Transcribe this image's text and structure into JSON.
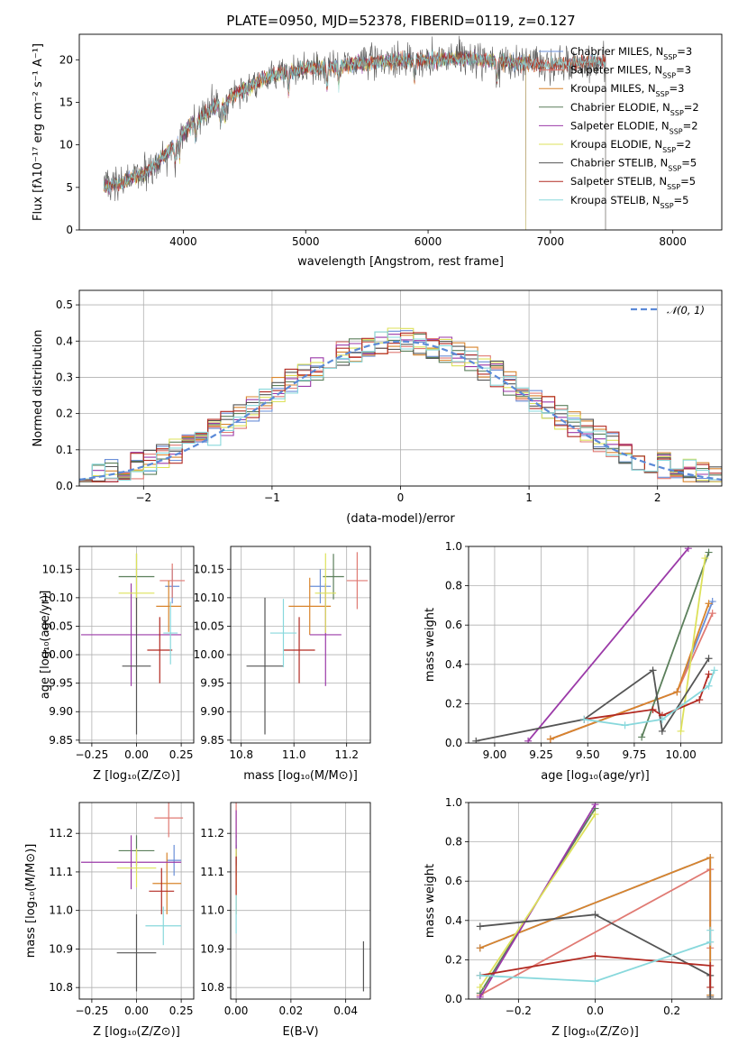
{
  "figure": {
    "title": "PLATE=0950, MJD=52378, FIBERID=0119, z=0.127"
  },
  "colors": {
    "Chabrier MILES": "#6a8fd8",
    "Salpeter MILES": "#e07a73",
    "Kroupa MILES": "#d8842c",
    "Chabrier ELODIE": "#5b7f5b",
    "Salpeter ELODIE": "#9b3aa8",
    "Kroupa ELODIE": "#dde15a",
    "Chabrier STELIB": "#555555",
    "Salpeter STELIB": "#b22a22",
    "Kroupa STELIB": "#88d8dc",
    "normal": "#5b8ad8"
  },
  "chart_data": [
    {
      "id": "spectrum",
      "type": "line",
      "xlabel": "wavelength [Angstrom, rest frame]",
      "ylabel": "Flux [fλ10⁻¹⁷ erg cm⁻² s⁻¹ A⁻¹]",
      "xlim": [
        3150,
        8400
      ],
      "ylim": [
        0,
        23
      ],
      "xticks": [
        4000,
        5000,
        6000,
        7000,
        8000
      ],
      "yticks": [
        0,
        5,
        10,
        15,
        20
      ],
      "legend_position": "top-right",
      "continuum": {
        "x": [
          3350,
          3500,
          3700,
          3900,
          4000,
          4200,
          4500,
          4700,
          5000,
          5300,
          5600,
          6000,
          6300,
          6600,
          7000,
          7400
        ],
        "y": [
          5.2,
          5.6,
          6.8,
          9.5,
          11.5,
          14.0,
          16.5,
          18.0,
          19.0,
          19.3,
          19.8,
          20.0,
          20.2,
          19.8,
          19.4,
          19.8
        ]
      },
      "series": [
        {
          "name": "Chabrier MILES, N_SSP=3",
          "x_range": [
            3350,
            7450
          ]
        },
        {
          "name": "Salpeter MILES, N_SSP=3",
          "x_range": [
            3350,
            7450
          ]
        },
        {
          "name": "Kroupa MILES, N_SSP=3",
          "x_range": [
            3350,
            7450
          ]
        },
        {
          "name": "Chabrier ELODIE, N_SSP=2",
          "x_range": [
            3350,
            6800
          ]
        },
        {
          "name": "Salpeter ELODIE, N_SSP=2",
          "x_range": [
            3350,
            6800
          ]
        },
        {
          "name": "Kroupa ELODIE, N_SSP=2",
          "x_range": [
            3350,
            6800
          ]
        },
        {
          "name": "Chabrier STELIB, N_SSP=5",
          "x_range": [
            3350,
            7450
          ]
        },
        {
          "name": "Salpeter STELIB, N_SSP=5",
          "x_range": [
            3350,
            7450
          ]
        },
        {
          "name": "Kroupa STELIB, N_SSP=5",
          "x_range": [
            3350,
            7450
          ]
        }
      ]
    },
    {
      "id": "residuals",
      "type": "line",
      "xlabel": "(data-model)/error",
      "ylabel": "Normed distribution",
      "xlim": [
        -2.5,
        2.5
      ],
      "ylim": [
        0,
        0.54
      ],
      "xticks": [
        -2,
        -1,
        0,
        1,
        2
      ],
      "yticks": [
        0.0,
        0.1,
        0.2,
        0.3,
        0.4,
        0.5
      ],
      "grid": true,
      "legend": "𝒩(0, 1)",
      "legend_position": "top-right",
      "hist_bins": [
        -2.5,
        2.5,
        0.1
      ]
    },
    {
      "id": "age_vs_Z",
      "type": "scatter",
      "xlabel": "Z [log₁₀(Z/Z⊙)]",
      "ylabel": "age  [log₁₀(age/yr)]",
      "xlim": [
        -0.32,
        0.32
      ],
      "ylim": [
        9.845,
        10.19
      ],
      "xticks": [
        -0.25,
        0.0,
        0.25
      ],
      "yticks": [
        9.85,
        9.9,
        9.95,
        10.0,
        10.05,
        10.1,
        10.15
      ],
      "grid": true,
      "points": [
        {
          "s": "Chabrier MILES",
          "x": 0.2,
          "y": 10.12,
          "xerr": 0.04,
          "yerr": 0.03
        },
        {
          "s": "Salpeter MILES",
          "x": 0.2,
          "y": 10.13,
          "xerr": 0.07,
          "yerr": 0.03
        },
        {
          "s": "Kroupa MILES",
          "x": 0.18,
          "y": 10.085,
          "xerr": 0.07,
          "yerr": 0.045
        },
        {
          "s": "Chabrier ELODIE",
          "x": 0.0,
          "y": 10.137,
          "xerr": 0.1,
          "yerr": 0.04
        },
        {
          "s": "Salpeter ELODIE",
          "x": -0.03,
          "y": 10.035,
          "xerr": 0.28,
          "yerr": 0.09
        },
        {
          "s": "Kroupa ELODIE",
          "x": 0.0,
          "y": 10.108,
          "xerr": 0.1,
          "yerr": 0.07
        },
        {
          "s": "Chabrier STELIB",
          "x": 0.0,
          "y": 9.98,
          "xerr": 0.08,
          "yerr": 0.12
        },
        {
          "s": "Salpeter STELIB",
          "x": 0.13,
          "y": 10.008,
          "xerr": 0.07,
          "yerr": 0.058
        },
        {
          "s": "Kroupa STELIB",
          "x": 0.19,
          "y": 10.038,
          "xerr": 0.04,
          "yerr": 0.055
        }
      ]
    },
    {
      "id": "age_vs_mass",
      "type": "scatter",
      "xlabel": "mass [log₁₀(M/M⊙)]",
      "ylabel": "",
      "xlim": [
        10.76,
        11.29
      ],
      "ylim": [
        9.845,
        10.19
      ],
      "xticks": [
        10.8,
        11.0,
        11.2
      ],
      "yticks": [
        9.85,
        9.9,
        9.95,
        10.0,
        10.05,
        10.1,
        10.15
      ],
      "grid": true,
      "points": [
        {
          "s": "Chabrier MILES",
          "x": 11.1,
          "y": 10.12,
          "xerr": 0.04,
          "yerr": 0.03
        },
        {
          "s": "Salpeter MILES",
          "x": 11.24,
          "y": 10.13,
          "xerr": 0.04,
          "yerr": 0.05
        },
        {
          "s": "Kroupa MILES",
          "x": 11.06,
          "y": 10.085,
          "xerr": 0.08,
          "yerr": 0.05
        },
        {
          "s": "Chabrier ELODIE",
          "x": 11.15,
          "y": 10.137,
          "xerr": 0.04,
          "yerr": 0.04
        },
        {
          "s": "Salpeter ELODIE",
          "x": 11.12,
          "y": 10.035,
          "xerr": 0.06,
          "yerr": 0.09
        },
        {
          "s": "Kroupa ELODIE",
          "x": 11.12,
          "y": 10.108,
          "xerr": 0.04,
          "yerr": 0.07
        },
        {
          "s": "Chabrier STELIB",
          "x": 10.89,
          "y": 9.98,
          "xerr": 0.07,
          "yerr": 0.12
        },
        {
          "s": "Salpeter STELIB",
          "x": 11.02,
          "y": 10.008,
          "xerr": 0.06,
          "yerr": 0.058
        },
        {
          "s": "Kroupa STELIB",
          "x": 10.96,
          "y": 10.038,
          "xerr": 0.05,
          "yerr": 0.06
        }
      ]
    },
    {
      "id": "mass_weight_vs_age",
      "type": "line",
      "xlabel": "age  [log₁₀(age/yr)]",
      "ylabel": "mass weight",
      "xlim": [
        8.86,
        10.22
      ],
      "ylim": [
        0,
        1
      ],
      "xticks": [
        9.0,
        9.25,
        9.5,
        9.75,
        10.0
      ],
      "yticks": [
        0.0,
        0.2,
        0.4,
        0.6,
        0.8,
        1.0
      ],
      "grid": true,
      "series": [
        {
          "s": "Chabrier MILES",
          "x": [
            9.3,
            9.98,
            10.17
          ],
          "y": [
            0.02,
            0.26,
            0.72
          ]
        },
        {
          "s": "Salpeter MILES",
          "x": [
            9.3,
            9.98,
            10.17
          ],
          "y": [
            0.02,
            0.26,
            0.66
          ]
        },
        {
          "s": "Kroupa MILES",
          "x": [
            9.3,
            9.98,
            10.15
          ],
          "y": [
            0.02,
            0.26,
            0.71
          ]
        },
        {
          "s": "Chabrier ELODIE",
          "x": [
            9.79,
            10.15
          ],
          "y": [
            0.03,
            0.97
          ]
        },
        {
          "s": "Salpeter ELODIE",
          "x": [
            9.18,
            10.04
          ],
          "y": [
            0.01,
            0.99
          ]
        },
        {
          "s": "Kroupa ELODIE",
          "x": [
            10.0,
            10.13
          ],
          "y": [
            0.06,
            0.94
          ]
        },
        {
          "s": "Chabrier STELIB",
          "x": [
            8.9,
            9.48,
            9.85,
            9.9,
            10.15
          ],
          "y": [
            0.01,
            0.12,
            0.37,
            0.06,
            0.43
          ]
        },
        {
          "s": "Salpeter STELIB",
          "x": [
            9.48,
            9.85,
            9.9,
            10.1,
            10.15
          ],
          "y": [
            0.12,
            0.17,
            0.14,
            0.22,
            0.35
          ]
        },
        {
          "s": "Kroupa STELIB",
          "x": [
            9.48,
            9.7,
            9.9,
            10.15,
            10.18
          ],
          "y": [
            0.12,
            0.09,
            0.12,
            0.29,
            0.37
          ]
        }
      ]
    },
    {
      "id": "mass_vs_Z",
      "type": "scatter",
      "xlabel": "Z [log₁₀(Z/Z⊙)]",
      "ylabel": "mass [log₁₀(M/M⊙)]",
      "xlim": [
        -0.32,
        0.32
      ],
      "ylim": [
        10.77,
        11.28
      ],
      "xticks": [
        -0.25,
        0.0,
        0.25
      ],
      "yticks": [
        10.8,
        10.9,
        11.0,
        11.1,
        11.2
      ],
      "grid": true,
      "points": [
        {
          "s": "Chabrier MILES",
          "x": 0.21,
          "y": 11.13,
          "xerr": 0.04,
          "yerr": 0.04
        },
        {
          "s": "Salpeter MILES",
          "x": 0.18,
          "y": 11.24,
          "xerr": 0.08,
          "yerr": 0.05
        },
        {
          "s": "Kroupa MILES",
          "x": 0.17,
          "y": 11.07,
          "xerr": 0.08,
          "yerr": 0.08
        },
        {
          "s": "Chabrier ELODIE",
          "x": 0.0,
          "y": 11.155,
          "xerr": 0.1,
          "yerr": 0.04
        },
        {
          "s": "Salpeter ELODIE",
          "x": -0.03,
          "y": 11.125,
          "xerr": 0.28,
          "yerr": 0.07
        },
        {
          "s": "Kroupa ELODIE",
          "x": 0.0,
          "y": 11.11,
          "xerr": 0.11,
          "yerr": 0.05
        },
        {
          "s": "Chabrier STELIB",
          "x": 0.0,
          "y": 10.89,
          "xerr": 0.11,
          "yerr": 0.1
        },
        {
          "s": "Salpeter STELIB",
          "x": 0.14,
          "y": 11.05,
          "xerr": 0.07,
          "yerr": 0.06
        },
        {
          "s": "Kroupa STELIB",
          "x": 0.15,
          "y": 10.96,
          "xerr": 0.1,
          "yerr": 0.05
        }
      ]
    },
    {
      "id": "mass_vs_ebv",
      "type": "scatter",
      "xlabel": "E(B-V)",
      "ylabel": "",
      "xlim": [
        -0.002,
        0.049
      ],
      "ylim": [
        10.77,
        11.28
      ],
      "xticks": [
        0.0,
        0.02,
        0.04
      ],
      "yticks": [
        10.8,
        10.9,
        11.0,
        11.1,
        11.2
      ],
      "grid": true,
      "points": [
        {
          "s": "Chabrier MILES",
          "x": 0.0,
          "y": 11.13,
          "xerr": 0,
          "yerr": 0.04
        },
        {
          "s": "Salpeter MILES",
          "x": 0.0,
          "y": 11.24,
          "xerr": 0,
          "yerr": 0.05
        },
        {
          "s": "Kroupa MILES",
          "x": 0.0,
          "y": 11.07,
          "xerr": 0,
          "yerr": 0.08
        },
        {
          "s": "Chabrier ELODIE",
          "x": 0.0,
          "y": 11.155,
          "xerr": 0,
          "yerr": 0.04
        },
        {
          "s": "Salpeter ELODIE",
          "x": 0.0,
          "y": 11.19,
          "xerr": 0,
          "yerr": 0.07
        },
        {
          "s": "Kroupa ELODIE",
          "x": 0.0,
          "y": 11.11,
          "xerr": 0,
          "yerr": 0.05
        },
        {
          "s": "Chabrier STELIB",
          "x": 0.0465,
          "y": 10.855,
          "xerr": 0,
          "yerr": 0.065
        },
        {
          "s": "Salpeter STELIB",
          "x": 0.0,
          "y": 11.09,
          "xerr": 0,
          "yerr": 0.05
        },
        {
          "s": "Kroupa STELIB",
          "x": 0.0,
          "y": 10.99,
          "xerr": 0,
          "yerr": 0.05
        }
      ]
    },
    {
      "id": "mass_weight_vs_Z",
      "type": "line",
      "xlabel": "Z [log₁₀(Z/Z⊙)]",
      "ylabel": "mass weight",
      "xlim": [
        -0.33,
        0.33
      ],
      "ylim": [
        0,
        1
      ],
      "xticks": [
        -0.2,
        0.0,
        0.2
      ],
      "yticks": [
        0.0,
        0.2,
        0.4,
        0.6,
        0.8,
        1.0
      ],
      "grid": true,
      "series": [
        {
          "s": "Chabrier MILES",
          "x": [
            -0.3,
            0.3,
            0.3
          ],
          "y": [
            0.26,
            0.72,
            0.02
          ]
        },
        {
          "s": "Salpeter MILES",
          "x": [
            -0.3,
            0.3,
            0.3
          ],
          "y": [
            0.02,
            0.66,
            0.26
          ]
        },
        {
          "s": "Kroupa MILES",
          "x": [
            -0.3,
            0.3,
            0.3
          ],
          "y": [
            0.26,
            0.72,
            0.02
          ]
        },
        {
          "s": "Chabrier ELODIE",
          "x": [
            -0.3,
            0.0
          ],
          "y": [
            0.03,
            0.97
          ]
        },
        {
          "s": "Salpeter ELODIE",
          "x": [
            -0.3,
            0.0
          ],
          "y": [
            0.01,
            0.99
          ]
        },
        {
          "s": "Kroupa ELODIE",
          "x": [
            -0.3,
            0.0
          ],
          "y": [
            0.06,
            0.94
          ]
        },
        {
          "s": "Chabrier STELIB",
          "x": [
            -0.3,
            0.0,
            0.3,
            0.3
          ],
          "y": [
            0.37,
            0.43,
            0.12,
            0.01
          ]
        },
        {
          "s": "Salpeter STELIB",
          "x": [
            -0.3,
            0.0,
            0.3,
            0.3
          ],
          "y": [
            0.12,
            0.22,
            0.17,
            0.06
          ]
        },
        {
          "s": "Kroupa STELIB",
          "x": [
            -0.3,
            0.0,
            0.3,
            0.3
          ],
          "y": [
            0.12,
            0.09,
            0.29,
            0.35
          ]
        }
      ]
    }
  ]
}
